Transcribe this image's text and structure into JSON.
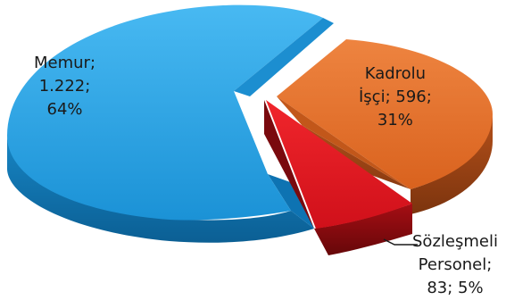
{
  "chart_data": {
    "type": "pie",
    "style": "3d-exploded",
    "legend": "none",
    "slices": [
      {
        "category": "Memur",
        "value": 1222,
        "percent": 64,
        "color": "#1E9BE0",
        "label_lines": [
          "Memur;",
          "1.222;",
          "64%"
        ]
      },
      {
        "category": "Kadrolu İşçi",
        "value": 596,
        "percent": 31,
        "color": "#E0651E",
        "label_lines": [
          "Kadrolu",
          "İşçi; 596;",
          "31%"
        ]
      },
      {
        "category": "Sözleşmeli Personel",
        "value": 83,
        "percent": 5,
        "color": "#E3121B",
        "label_lines": [
          "Sözleşmeli",
          "Personel;",
          "83; 5%"
        ]
      }
    ]
  }
}
